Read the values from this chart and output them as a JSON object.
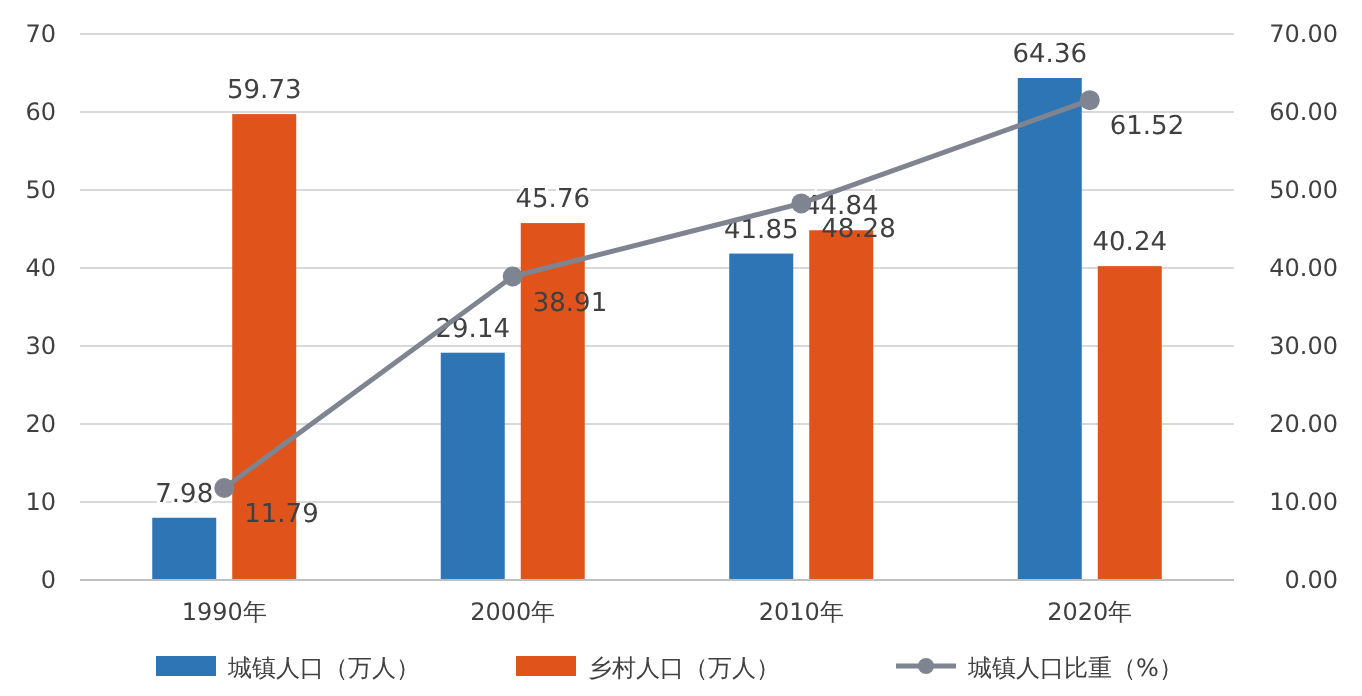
{
  "chart_data": {
    "type": "bar",
    "categories": [
      "1990年",
      "2000年",
      "2010年",
      "2020年"
    ],
    "series": [
      {
        "name": "城镇人口（万人）",
        "color": "#2e75b6",
        "values": [
          7.98,
          29.14,
          41.85,
          64.36
        ]
      },
      {
        "name": "乡村人口（万人）",
        "color": "#e0531a",
        "values": [
          59.73,
          45.76,
          44.84,
          40.24
        ]
      },
      {
        "name": "城镇人口比重（%）",
        "type": "line",
        "axis": "y2",
        "color": "#7f8491",
        "marker": "circle",
        "values": [
          11.79,
          38.91,
          48.28,
          61.52
        ]
      }
    ],
    "ylim": [
      0,
      70
    ],
    "yticks": [
      0,
      10,
      20,
      30,
      40,
      50,
      60,
      70
    ],
    "y2lim": [
      0,
      70
    ],
    "y2ticks": [
      {
        "value": 0,
        "label": "0.00"
      },
      {
        "value": 10,
        "label": "10.00"
      },
      {
        "value": 20,
        "label": "20.00"
      },
      {
        "value": 30,
        "label": "30.00"
      },
      {
        "value": 40,
        "label": "40.00"
      },
      {
        "value": 50,
        "label": "50.00"
      },
      {
        "value": 60,
        "label": "60.00"
      },
      {
        "value": 70,
        "label": "70.00"
      }
    ],
    "grid": "y",
    "legend": "bottom",
    "data_labels": true
  }
}
